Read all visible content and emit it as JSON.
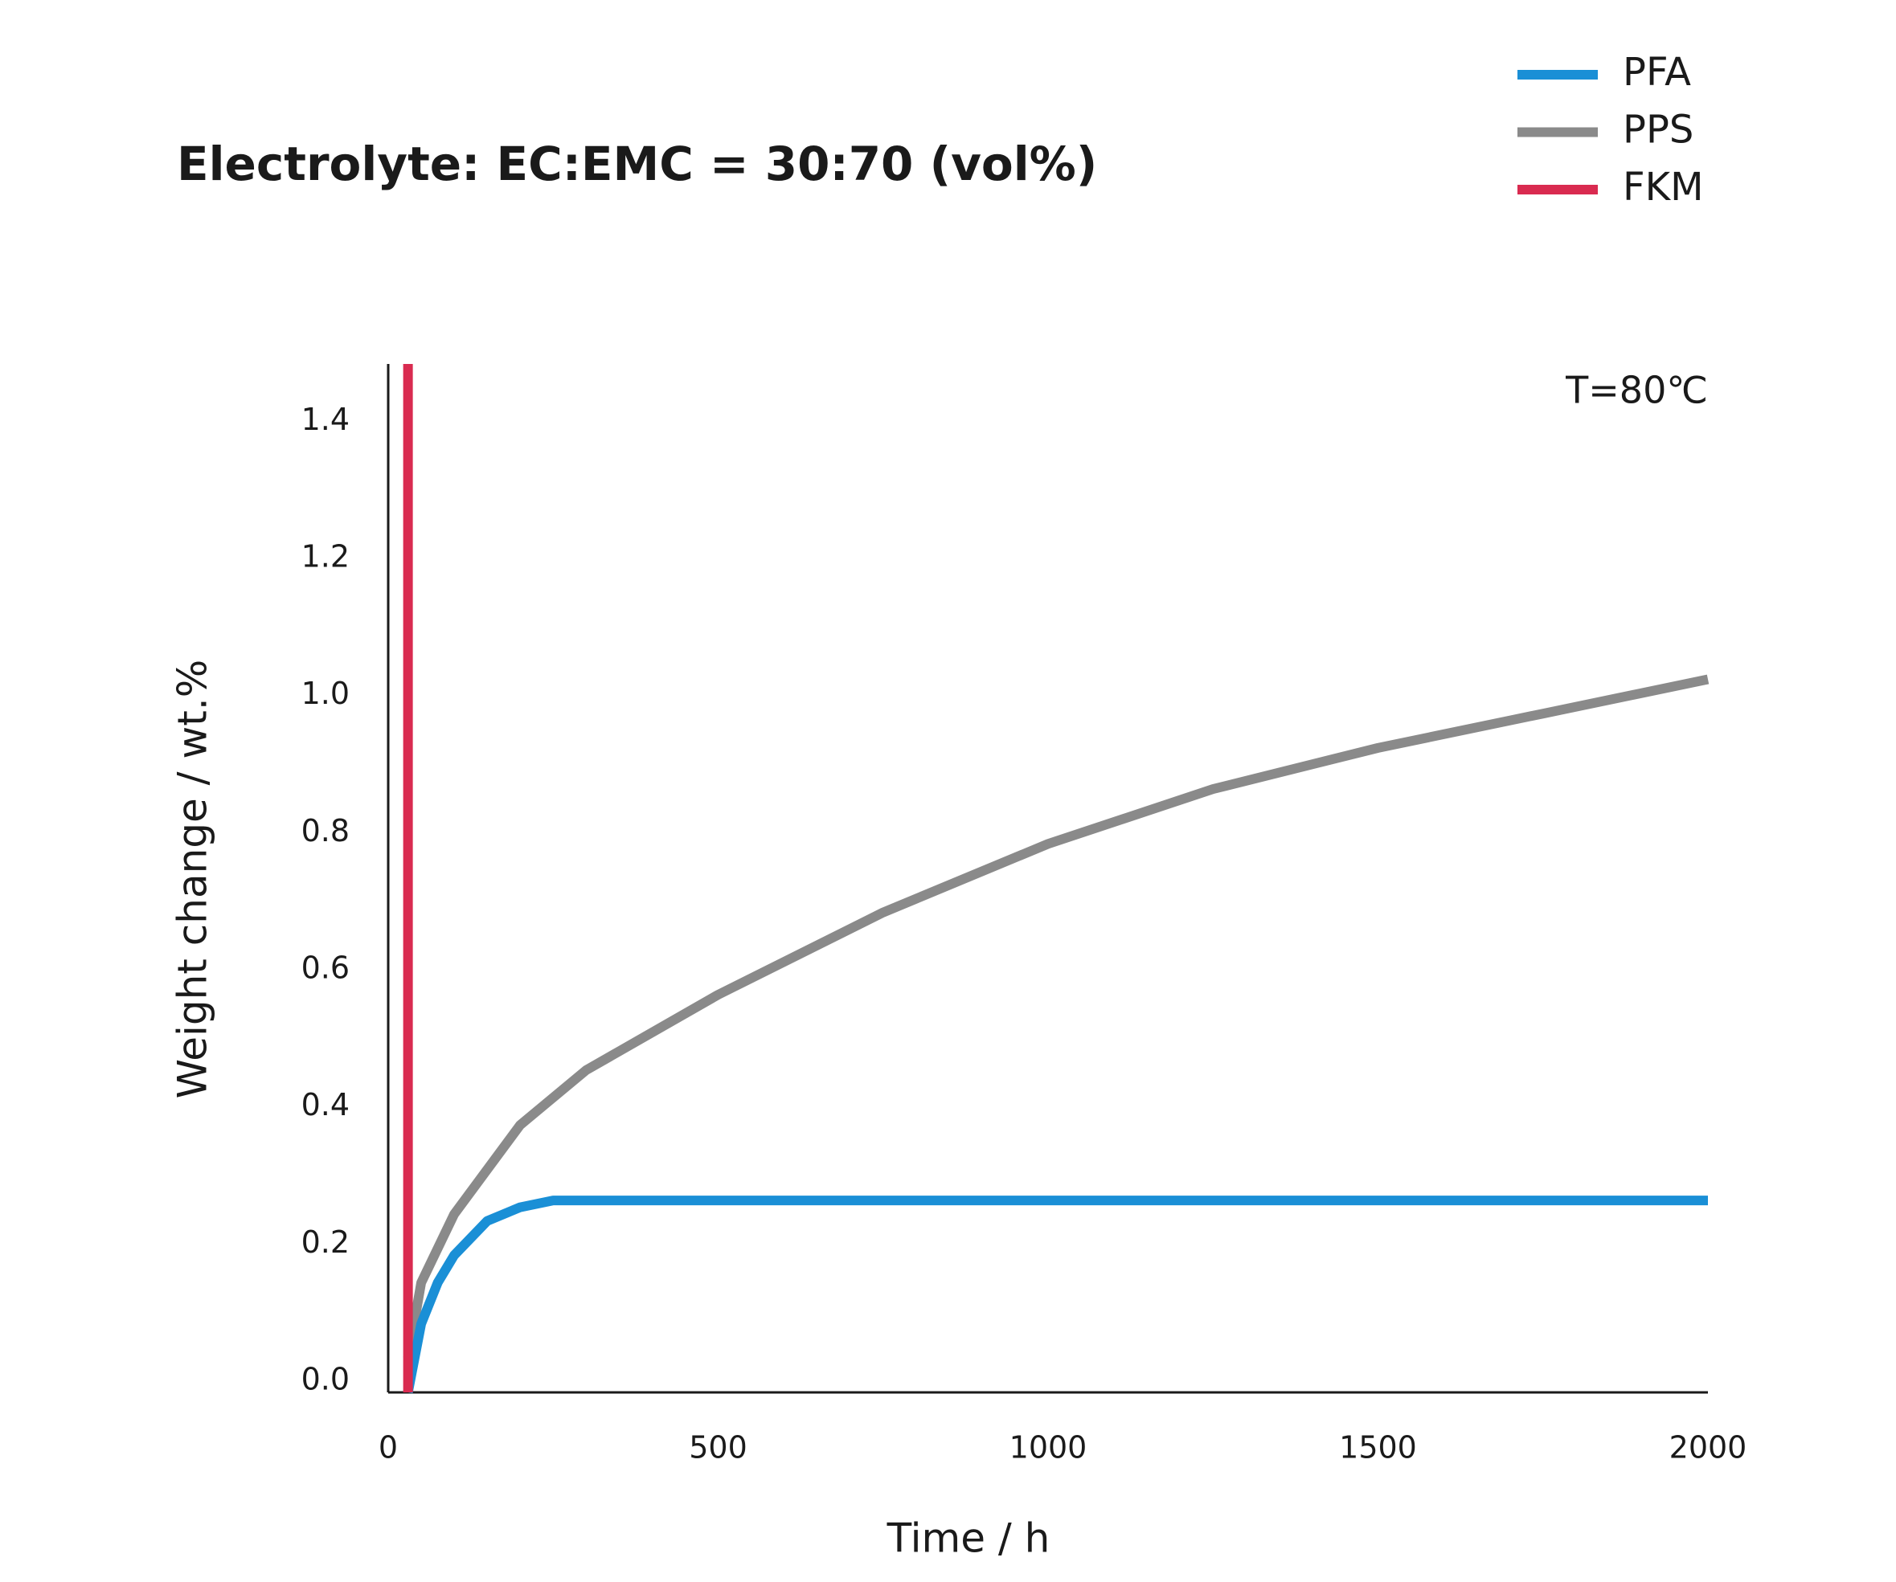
{
  "chart_data": {
    "type": "line",
    "title": "Electrolyte: EC:EMC = 30:70 (vol%)",
    "annotation": "T=80℃",
    "xlabel": "Time / h",
    "ylabel": "Weight change / wt.%",
    "xlim": [
      0,
      2000
    ],
    "xticks": [
      0,
      500,
      1000,
      1500,
      2000
    ],
    "ylim": [
      0,
      1.5
    ],
    "yticks": [
      {
        "value": 0,
        "label": "0.0"
      },
      0.2,
      0.4,
      0.6,
      0.8,
      {
        "value": 1,
        "label": "1.0"
      },
      1.2,
      1.4
    ],
    "legend": "top-right",
    "series": [
      {
        "name": "PFA",
        "color": "#1a8fd6",
        "x": [
          30,
          50,
          75,
          100,
          150,
          200,
          250,
          300,
          2000
        ],
        "values": [
          0,
          0.1,
          0.16,
          0.2,
          0.25,
          0.27,
          0.28,
          0.28,
          0.28
        ]
      },
      {
        "name": "PPS",
        "color": "#8a8a8a",
        "x": [
          30,
          50,
          100,
          200,
          300,
          500,
          750,
          1000,
          1250,
          1500,
          1750,
          2000
        ],
        "values": [
          0.05,
          0.16,
          0.26,
          0.39,
          0.47,
          0.58,
          0.7,
          0.8,
          0.88,
          0.94,
          0.99,
          1.04
        ]
      },
      {
        "name": "FKM",
        "color": "#d92b50",
        "x": [
          30,
          30
        ],
        "values": [
          0,
          1.5
        ]
      }
    ]
  }
}
